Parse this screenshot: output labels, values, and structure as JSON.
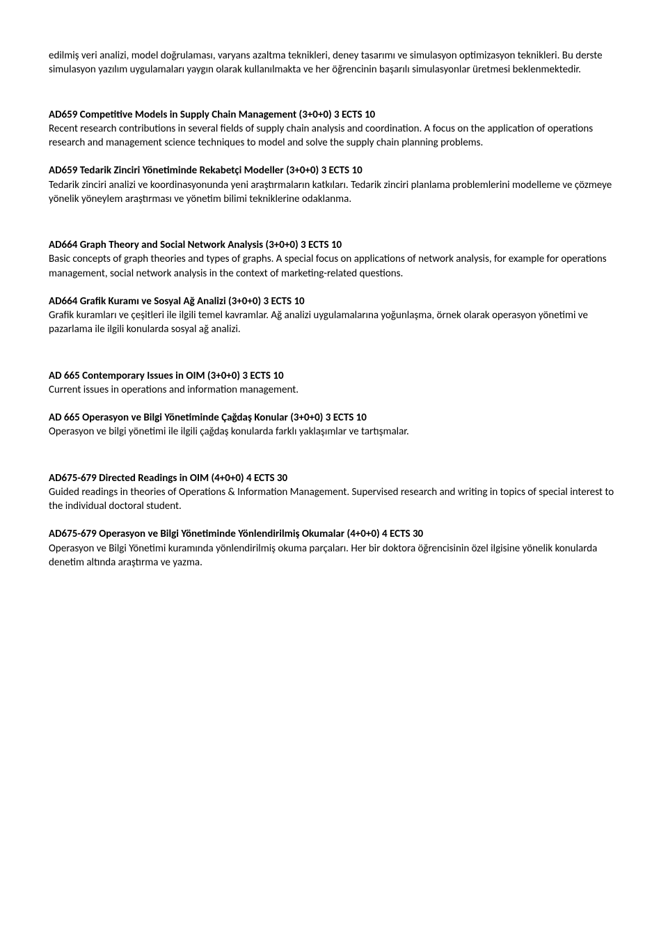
{
  "intro": {
    "para1": "edilmiş veri analizi, model doğrulaması, varyans azaltma teknikleri, deney tasarımı ve simulasyon optimizasyon teknikleri. Bu derste simulasyon yazılım uygulamaları yaygın olarak kullanılmakta ve her öğrencinin başarılı simulasyonlar üretmesi beklenmektedir."
  },
  "courses": [
    {
      "title": "AD659 Competitive Models in Supply Chain Management (3+0+0) 3 ECTS 10",
      "desc": "Recent research contributions in several fields of supply chain analysis and coordination. A focus on the application of operations research and management science techniques to model and solve the supply chain planning problems."
    },
    {
      "title": "AD659 Tedarik Zinciri Yönetiminde Rekabetçi Modeller (3+0+0) 3 ECTS 10",
      "desc": "Tedarik zinciri analizi ve koordinasyonunda yeni araştırmaların katkıları. Tedarik zinciri planlama problemlerini modelleme ve çözmeye yönelik yöneylem araştırması ve yönetim bilimi tekniklerine odaklanma."
    },
    {
      "title": "AD664 Graph Theory and Social Network Analysis (3+0+0) 3 ECTS 10",
      "desc": "Basic concepts of graph theories and types of graphs. A special focus on applications of network analysis, for example for operations management, social network analysis in the context of marketing-related questions."
    },
    {
      "title": "AD664 Grafik Kuramı ve Sosyal Ağ Analizi (3+0+0) 3 ECTS 10",
      "desc": "Grafik kuramları ve çeşitleri ile ilgili temel kavramlar. Ağ analizi uygulamalarına yoğunlaşma, örnek olarak operasyon yönetimi ve pazarlama ile ilgili konularda sosyal ağ analizi."
    },
    {
      "title": "AD 665 Contemporary Issues in OIM (3+0+0) 3 ECTS 10",
      "desc": "Current issues in operations and information management."
    },
    {
      "title": "AD 665 Operasyon ve Bilgi Yönetiminde Çağdaş Konular (3+0+0) 3 ECTS 10",
      "desc": "Operasyon ve bilgi yönetimi ile ilgili çağdaş konularda farklı yaklaşımlar ve tartışmalar."
    },
    {
      "title": "AD675-679 Directed Readings in OIM (4+0+0) 4 ECTS 30",
      "desc": "Guided readings in theories of Operations & Information Management. Supervised research and writing in topics of special interest to the individual doctoral student."
    },
    {
      "title": "AD675-679 Operasyon ve Bilgi Yönetiminde Yönlendirilmiş Okumalar (4+0+0) 4 ECTS 30",
      "desc": "Operasyon ve Bilgi Yönetimi kuramında yönlendirilmiş okuma parçaları. Her bir doktora öğrencisinin özel ilgisine yönelik konularda denetim altında araştırma ve yazma."
    }
  ]
}
